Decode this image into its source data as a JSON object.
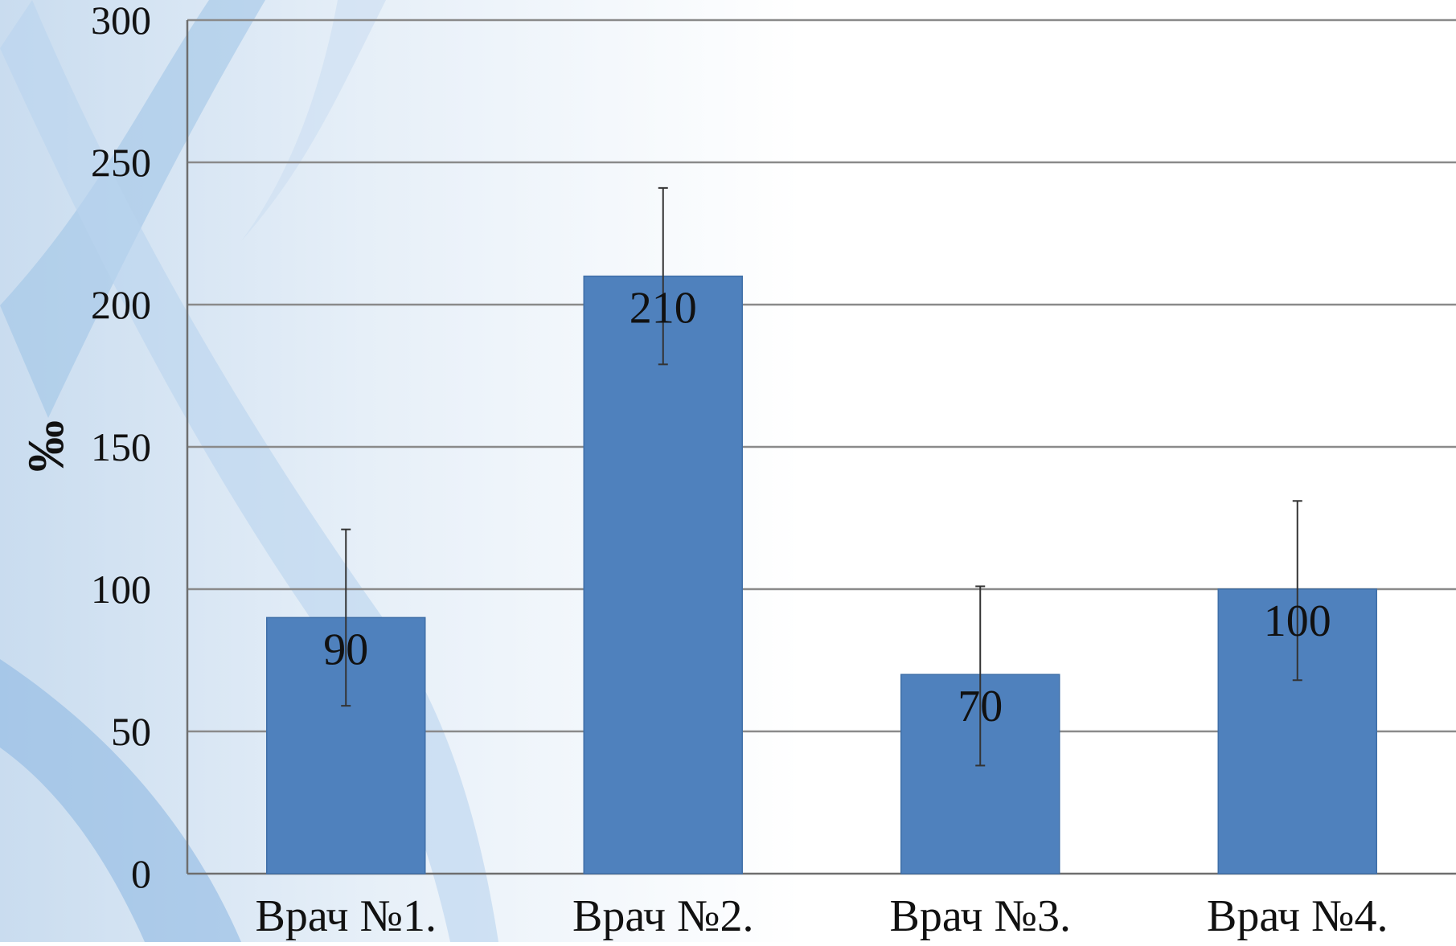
{
  "chart_data": {
    "type": "bar",
    "title": "",
    "xlabel": "",
    "ylabel": "‰",
    "categories": [
      "Врач №1.",
      "Врач №2.",
      "Врач №3.",
      "Врач №4."
    ],
    "values": [
      90,
      210,
      70,
      100
    ],
    "data_labels": [
      "90",
      "210",
      "70",
      "100"
    ],
    "error_bars": [
      {
        "low": 59,
        "high": 121
      },
      {
        "low": 179,
        "high": 241
      },
      {
        "low": 38,
        "high": 101
      },
      {
        "low": 68,
        "high": 131
      }
    ],
    "ylim": [
      0,
      300
    ],
    "yticks": [
      0,
      50,
      100,
      150,
      200,
      250,
      300
    ],
    "grid": true,
    "legend": "none"
  },
  "colors": {
    "bar": "#4f81bd",
    "bar_edge": "#3f6fa8",
    "grid": "#8a8a8a",
    "axis": "#6e6e6e",
    "text": "#111111",
    "error_bar": "#333333"
  }
}
